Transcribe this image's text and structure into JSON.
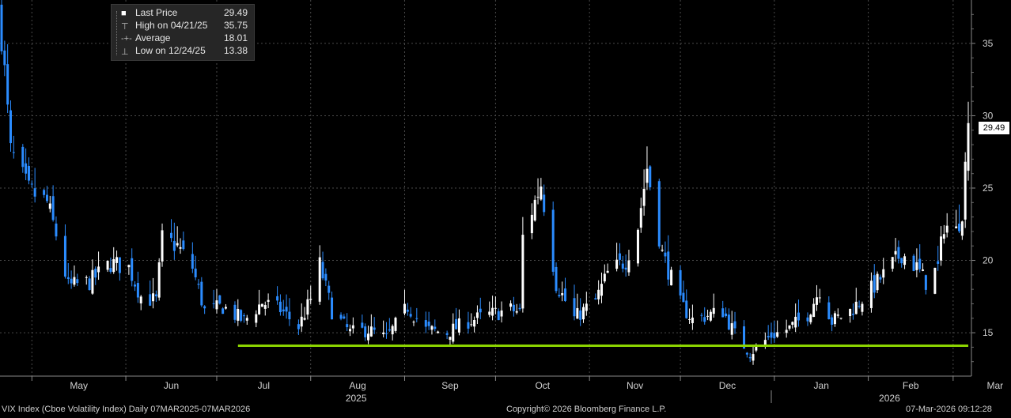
{
  "legend": {
    "last_price_label": "Last Price",
    "last_price_value": "29.49",
    "high_label": "High on 04/21/25",
    "high_value": "35.75",
    "average_label": "Average",
    "average_value": "18.01",
    "low_label": "Low on 12/24/25",
    "low_value": "13.38"
  },
  "last_price_tag": "29.49",
  "footer": {
    "left": "VIX Index (Cboe Volatility Index) Daily 07MAR2025-07MAR2026",
    "center": "Copyright© 2026 Bloomberg Finance L.P.",
    "right": "07-Mar-2026 09:12:28"
  },
  "colors": {
    "up": "#ffffff",
    "down": "#2b8cff",
    "support_line": "#8cd400",
    "grid": "#4a4a4a"
  },
  "chart_data": {
    "type": "candlestick",
    "title": "",
    "x_range": [
      "2025-04-21",
      "2026-03-06"
    ],
    "ylim": [
      12,
      38
    ],
    "y_ticks": [
      15,
      20,
      25,
      30,
      35
    ],
    "month_ticks": [
      {
        "label": "May",
        "date": "2025-05-01"
      },
      {
        "label": "Jun",
        "date": "2025-06-01"
      },
      {
        "label": "Jul",
        "date": "2025-07-01"
      },
      {
        "label": "Aug",
        "date": "2025-08-01"
      },
      {
        "label": "Sep",
        "date": "2025-09-01"
      },
      {
        "label": "Oct",
        "date": "2025-10-01"
      },
      {
        "label": "Nov",
        "date": "2025-11-01"
      },
      {
        "label": "Dec",
        "date": "2025-12-01"
      },
      {
        "label": "Jan",
        "date": "2026-01-01"
      },
      {
        "label": "Feb",
        "date": "2026-02-01"
      },
      {
        "label": "Mar",
        "date": "2026-03-01"
      }
    ],
    "year_labels": [
      {
        "label": "2025",
        "date": "2025-08-16"
      },
      {
        "label": "2026",
        "date": "2026-02-08"
      }
    ],
    "year_separator": "2025-12-31",
    "support_line": {
      "value": 14.1,
      "start": "2025-07-08",
      "end": "2026-03-06"
    },
    "grid": true,
    "legend_position": "top-left",
    "last_price": 29.49,
    "anchors": [
      [
        "2025-04-21",
        35.7
      ],
      [
        "2025-04-24",
        27.5
      ],
      [
        "2025-04-30",
        24.8
      ],
      [
        "2025-05-06",
        24.0
      ],
      [
        "2025-05-09",
        21.8
      ],
      [
        "2025-05-13",
        18.2
      ],
      [
        "2025-05-20",
        18.5
      ],
      [
        "2025-05-27",
        19.8
      ],
      [
        "2025-06-02",
        19.5
      ],
      [
        "2025-06-06",
        17.5
      ],
      [
        "2025-06-11",
        17.2
      ],
      [
        "2025-06-13",
        21.5
      ],
      [
        "2025-06-18",
        21.0
      ],
      [
        "2025-06-23",
        19.5
      ],
      [
        "2025-06-27",
        16.5
      ],
      [
        "2025-07-03",
        16.8
      ],
      [
        "2025-07-10",
        15.8
      ],
      [
        "2025-07-16",
        17.1
      ],
      [
        "2025-07-22",
        16.6
      ],
      [
        "2025-07-28",
        15.4
      ],
      [
        "2025-08-01",
        17.3
      ],
      [
        "2025-08-04",
        19.7
      ],
      [
        "2025-08-08",
        16.5
      ],
      [
        "2025-08-14",
        15.0
      ],
      [
        "2025-08-20",
        15.2
      ],
      [
        "2025-08-26",
        14.6
      ],
      [
        "2025-09-02",
        16.8
      ],
      [
        "2025-09-08",
        15.2
      ],
      [
        "2025-09-15",
        15.0
      ],
      [
        "2025-09-22",
        15.8
      ],
      [
        "2025-09-30",
        16.3
      ],
      [
        "2025-10-06",
        16.6
      ],
      [
        "2025-10-09",
        16.4
      ],
      [
        "2025-10-10",
        21.6
      ],
      [
        "2025-10-16",
        25.3
      ],
      [
        "2025-10-21",
        18.4
      ],
      [
        "2025-10-27",
        16.0
      ],
      [
        "2025-11-03",
        17.2
      ],
      [
        "2025-11-07",
        19.1
      ],
      [
        "2025-11-13",
        20.0
      ],
      [
        "2025-11-17",
        22.4
      ],
      [
        "2025-11-20",
        26.4
      ],
      [
        "2025-11-25",
        20.5
      ],
      [
        "2025-12-01",
        17.0
      ],
      [
        "2025-12-05",
        15.9
      ],
      [
        "2025-12-10",
        16.2
      ],
      [
        "2025-12-15",
        16.5
      ],
      [
        "2025-12-19",
        14.9
      ],
      [
        "2025-12-24",
        13.6
      ],
      [
        "2025-12-31",
        14.8
      ],
      [
        "2026-01-06",
        15.3
      ],
      [
        "2026-01-12",
        16.3
      ],
      [
        "2026-01-16",
        18.0
      ],
      [
        "2026-01-20",
        15.8
      ],
      [
        "2026-01-26",
        16.5
      ],
      [
        "2026-02-02",
        18.0
      ],
      [
        "2026-02-06",
        19.0
      ],
      [
        "2026-02-12",
        20.5
      ],
      [
        "2026-02-17",
        19.5
      ],
      [
        "2026-02-20",
        18.5
      ],
      [
        "2026-02-24",
        19.5
      ],
      [
        "2026-02-26",
        22.5
      ],
      [
        "2026-03-02",
        22.0
      ],
      [
        "2026-03-04",
        23.5
      ],
      [
        "2026-03-06",
        29.49
      ]
    ]
  }
}
